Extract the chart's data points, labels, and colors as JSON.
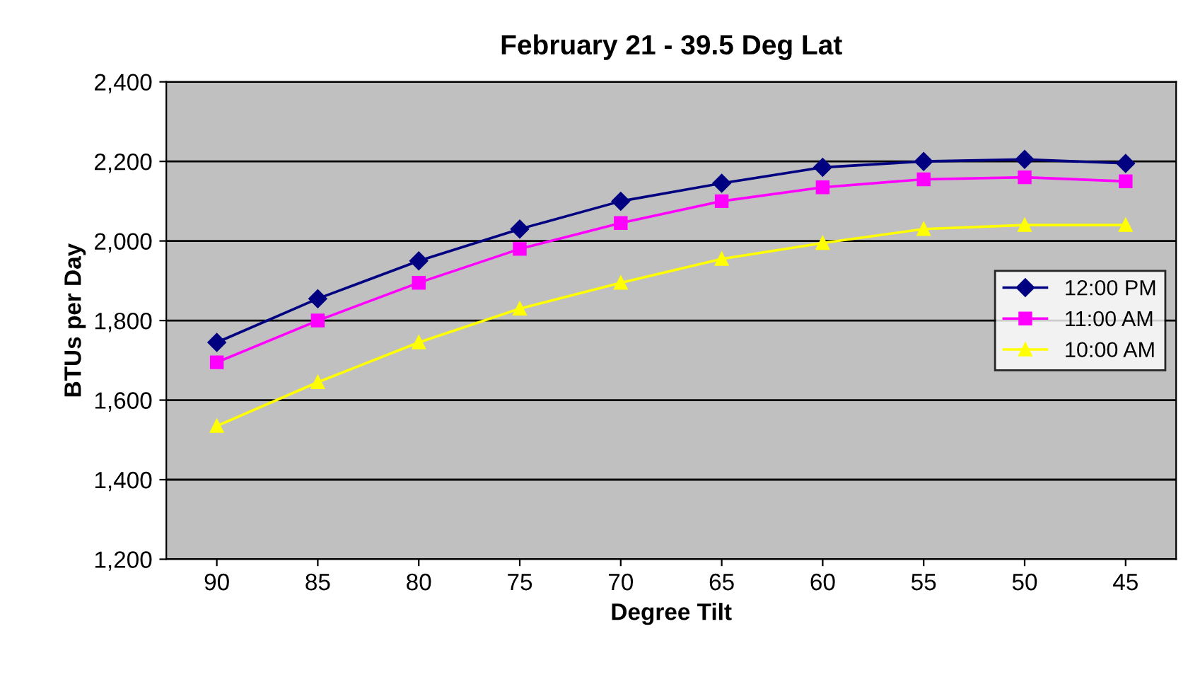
{
  "chart_data": {
    "type": "line",
    "title": "February 21 - 39.5 Deg Lat",
    "xlabel": "Degree Tilt",
    "ylabel": "BTUs per Day",
    "categories": [
      "90",
      "85",
      "80",
      "75",
      "70",
      "65",
      "60",
      "55",
      "50",
      "45"
    ],
    "series": [
      {
        "name": "12:00 PM",
        "color": "#000080",
        "marker": "diamond",
        "values": [
          1745,
          1855,
          1950,
          2030,
          2100,
          2145,
          2185,
          2200,
          2205,
          2195
        ]
      },
      {
        "name": "11:00 AM",
        "color": "#ff00ff",
        "marker": "square",
        "values": [
          1695,
          1800,
          1895,
          1980,
          2045,
          2100,
          2135,
          2155,
          2160,
          2150
        ]
      },
      {
        "name": "10:00 AM",
        "color": "#ffff00",
        "marker": "triangle",
        "values": [
          1535,
          1645,
          1745,
          1830,
          1895,
          1955,
          1995,
          2030,
          2040,
          2040
        ]
      }
    ],
    "ylim": [
      1200,
      2400
    ],
    "yticks": [
      {
        "value": 1200,
        "label": "1,200"
      },
      {
        "value": 1400,
        "label": "1,400"
      },
      {
        "value": 1600,
        "label": "1,600"
      },
      {
        "value": 1800,
        "label": "1,800"
      },
      {
        "value": 2000,
        "label": "2,000"
      },
      {
        "value": 2200,
        "label": "2,200"
      },
      {
        "value": 2400,
        "label": "2,400"
      }
    ],
    "grid": "y",
    "legend": "right",
    "line_style": "solid"
  }
}
